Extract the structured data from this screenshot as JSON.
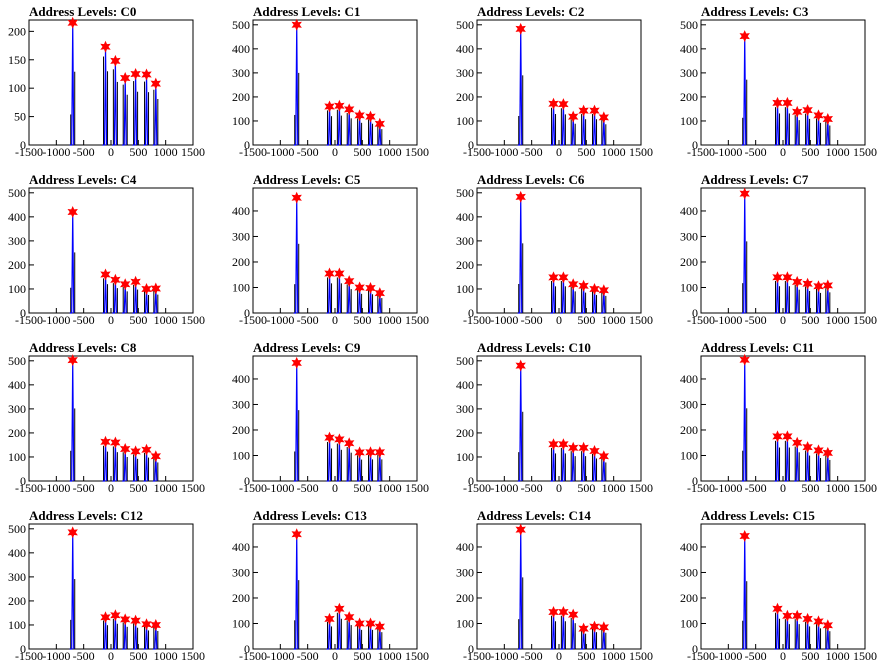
{
  "chart_data": [
    {
      "type": "histogram",
      "title": "Address Levels: C0",
      "xlim": [
        -1500,
        1500
      ],
      "ylim": [
        0,
        220
      ],
      "x_ticks": [
        "-1500",
        "-1000",
        "-500",
        "0",
        "500",
        "1000",
        "1500"
      ],
      "y_ticks": [
        "0",
        "50",
        "100",
        "150",
        "200"
      ],
      "peaks": [
        {
          "x": -700,
          "y": 215
        },
        {
          "x": -100,
          "y": 173
        },
        {
          "x": 80,
          "y": 148
        },
        {
          "x": 260,
          "y": 118
        },
        {
          "x": 450,
          "y": 125
        },
        {
          "x": 650,
          "y": 124
        },
        {
          "x": 820,
          "y": 108
        }
      ]
    },
    {
      "type": "histogram",
      "title": "Address Levels: C1",
      "xlim": [
        -1500,
        1500
      ],
      "ylim": [
        0,
        520
      ],
      "x_ticks": [
        "-1500",
        "-1000",
        "-500",
        "0",
        "500",
        "1000",
        "1500"
      ],
      "y_ticks": [
        "0",
        "100",
        "200",
        "300",
        "400",
        "500"
      ],
      "peaks": [
        {
          "x": -700,
          "y": 500
        },
        {
          "x": -100,
          "y": 160
        },
        {
          "x": 80,
          "y": 163
        },
        {
          "x": 260,
          "y": 148
        },
        {
          "x": 450,
          "y": 123
        },
        {
          "x": 650,
          "y": 118
        },
        {
          "x": 820,
          "y": 88
        }
      ]
    },
    {
      "type": "histogram",
      "title": "Address Levels: C2",
      "xlim": [
        -1500,
        1500
      ],
      "ylim": [
        0,
        520
      ],
      "x_ticks": [
        "-1500",
        "-1000",
        "-500",
        "0",
        "500",
        "1000",
        "1500"
      ],
      "y_ticks": [
        "0",
        "100",
        "200",
        "300",
        "400",
        "500"
      ],
      "peaks": [
        {
          "x": -700,
          "y": 483
        },
        {
          "x": -100,
          "y": 172
        },
        {
          "x": 80,
          "y": 170
        },
        {
          "x": 260,
          "y": 118
        },
        {
          "x": 450,
          "y": 143
        },
        {
          "x": 650,
          "y": 143
        },
        {
          "x": 820,
          "y": 115
        }
      ]
    },
    {
      "type": "histogram",
      "title": "Address Levels: C3",
      "xlim": [
        -1500,
        1500
      ],
      "ylim": [
        0,
        520
      ],
      "x_ticks": [
        "-1500",
        "-1000",
        "-500",
        "0",
        "500",
        "1000",
        "1500"
      ],
      "y_ticks": [
        "0",
        "100",
        "200",
        "300",
        "400",
        "500"
      ],
      "peaks": [
        {
          "x": -700,
          "y": 453
        },
        {
          "x": -100,
          "y": 175
        },
        {
          "x": 80,
          "y": 175
        },
        {
          "x": 260,
          "y": 138
        },
        {
          "x": 450,
          "y": 145
        },
        {
          "x": 650,
          "y": 123
        },
        {
          "x": 820,
          "y": 108
        }
      ]
    },
    {
      "type": "histogram",
      "title": "Address Levels: C4",
      "xlim": [
        -1500,
        1500
      ],
      "ylim": [
        0,
        520
      ],
      "x_ticks": [
        "-1500",
        "-1000",
        "-500",
        "0",
        "500",
        "1000",
        "1500"
      ],
      "y_ticks": [
        "0",
        "100",
        "200",
        "300",
        "400",
        "500"
      ],
      "peaks": [
        {
          "x": -700,
          "y": 420
        },
        {
          "x": -100,
          "y": 160
        },
        {
          "x": 80,
          "y": 138
        },
        {
          "x": 260,
          "y": 120
        },
        {
          "x": 450,
          "y": 130
        },
        {
          "x": 650,
          "y": 100
        },
        {
          "x": 820,
          "y": 102
        }
      ]
    },
    {
      "type": "histogram",
      "title": "Address Levels: C5",
      "xlim": [
        -1500,
        1500
      ],
      "ylim": [
        0,
        490
      ],
      "x_ticks": [
        "-1500",
        "-1000",
        "-500",
        "0",
        "500",
        "1000",
        "1500"
      ],
      "y_ticks": [
        "0",
        "100",
        "200",
        "300",
        "400"
      ],
      "peaks": [
        {
          "x": -700,
          "y": 452
        },
        {
          "x": -100,
          "y": 155
        },
        {
          "x": 80,
          "y": 155
        },
        {
          "x": 260,
          "y": 125
        },
        {
          "x": 450,
          "y": 100
        },
        {
          "x": 650,
          "y": 98
        },
        {
          "x": 820,
          "y": 78
        }
      ]
    },
    {
      "type": "histogram",
      "title": "Address Levels: C6",
      "xlim": [
        -1500,
        1500
      ],
      "ylim": [
        0,
        520
      ],
      "x_ticks": [
        "-1500",
        "-1000",
        "-500",
        "0",
        "500",
        "1000",
        "1500"
      ],
      "y_ticks": [
        "0",
        "100",
        "200",
        "300",
        "400",
        "500"
      ],
      "peaks": [
        {
          "x": -700,
          "y": 483
        },
        {
          "x": -100,
          "y": 148
        },
        {
          "x": 80,
          "y": 148
        },
        {
          "x": 260,
          "y": 120
        },
        {
          "x": 450,
          "y": 113
        },
        {
          "x": 650,
          "y": 100
        },
        {
          "x": 820,
          "y": 95
        }
      ]
    },
    {
      "type": "histogram",
      "title": "Address Levels: C7",
      "xlim": [
        -1500,
        1500
      ],
      "ylim": [
        0,
        490
      ],
      "x_ticks": [
        "-1500",
        "-1000",
        "-500",
        "0",
        "500",
        "1000",
        "1500"
      ],
      "y_ticks": [
        "0",
        "100",
        "200",
        "300",
        "400"
      ],
      "peaks": [
        {
          "x": -700,
          "y": 468
        },
        {
          "x": -100,
          "y": 140
        },
        {
          "x": 80,
          "y": 140
        },
        {
          "x": 260,
          "y": 122
        },
        {
          "x": 450,
          "y": 115
        },
        {
          "x": 650,
          "y": 105
        },
        {
          "x": 820,
          "y": 108
        }
      ]
    },
    {
      "type": "histogram",
      "title": "Address Levels: C8",
      "xlim": [
        -1500,
        1500
      ],
      "ylim": [
        0,
        520
      ],
      "x_ticks": [
        "-1500",
        "-1000",
        "-500",
        "0",
        "500",
        "1000",
        "1500"
      ],
      "y_ticks": [
        "0",
        "100",
        "200",
        "300",
        "400",
        "500"
      ],
      "peaks": [
        {
          "x": -700,
          "y": 503
        },
        {
          "x": -100,
          "y": 163
        },
        {
          "x": 80,
          "y": 160
        },
        {
          "x": 260,
          "y": 133
        },
        {
          "x": 450,
          "y": 123
        },
        {
          "x": 650,
          "y": 130
        },
        {
          "x": 820,
          "y": 103
        }
      ]
    },
    {
      "type": "histogram",
      "title": "Address Levels: C9",
      "xlim": [
        -1500,
        1500
      ],
      "ylim": [
        0,
        490
      ],
      "x_ticks": [
        "-1500",
        "-1000",
        "-500",
        "0",
        "500",
        "1000",
        "1500"
      ],
      "y_ticks": [
        "0",
        "100",
        "200",
        "300",
        "400"
      ],
      "peaks": [
        {
          "x": -700,
          "y": 463
        },
        {
          "x": -100,
          "y": 170
        },
        {
          "x": 80,
          "y": 163
        },
        {
          "x": 260,
          "y": 148
        },
        {
          "x": 450,
          "y": 112
        },
        {
          "x": 650,
          "y": 113
        },
        {
          "x": 820,
          "y": 113
        }
      ]
    },
    {
      "type": "histogram",
      "title": "Address Levels: C10",
      "xlim": [
        -1500,
        1500
      ],
      "ylim": [
        0,
        520
      ],
      "x_ticks": [
        "-1500",
        "-1000",
        "-500",
        "0",
        "500",
        "1000",
        "1500"
      ],
      "y_ticks": [
        "0",
        "100",
        "200",
        "300",
        "400",
        "500"
      ],
      "peaks": [
        {
          "x": -700,
          "y": 480
        },
        {
          "x": -100,
          "y": 153
        },
        {
          "x": 80,
          "y": 153
        },
        {
          "x": 260,
          "y": 138
        },
        {
          "x": 450,
          "y": 138
        },
        {
          "x": 650,
          "y": 125
        },
        {
          "x": 820,
          "y": 103
        }
      ]
    },
    {
      "type": "histogram",
      "title": "Address Levels: C11",
      "xlim": [
        -1500,
        1500
      ],
      "ylim": [
        0,
        490
      ],
      "x_ticks": [
        "-1500",
        "-1000",
        "-500",
        "0",
        "500",
        "1000",
        "1500"
      ],
      "y_ticks": [
        "0",
        "100",
        "200",
        "300",
        "400"
      ],
      "peaks": [
        {
          "x": -700,
          "y": 475
        },
        {
          "x": -100,
          "y": 175
        },
        {
          "x": 80,
          "y": 175
        },
        {
          "x": 260,
          "y": 150
        },
        {
          "x": 450,
          "y": 133
        },
        {
          "x": 650,
          "y": 120
        },
        {
          "x": 820,
          "y": 110
        }
      ]
    },
    {
      "type": "histogram",
      "title": "Address Levels: C12",
      "xlim": [
        -1500,
        1500
      ],
      "ylim": [
        0,
        520
      ],
      "x_ticks": [
        "-1500",
        "-1000",
        "-500",
        "0",
        "500",
        "1000",
        "1500"
      ],
      "y_ticks": [
        "0",
        "100",
        "200",
        "300",
        "400",
        "500"
      ],
      "peaks": [
        {
          "x": -700,
          "y": 485
        },
        {
          "x": -100,
          "y": 132
        },
        {
          "x": 80,
          "y": 140
        },
        {
          "x": 260,
          "y": 123
        },
        {
          "x": 450,
          "y": 118
        },
        {
          "x": 650,
          "y": 103
        },
        {
          "x": 820,
          "y": 100
        }
      ]
    },
    {
      "type": "histogram",
      "title": "Address Levels: C13",
      "xlim": [
        -1500,
        1500
      ],
      "ylim": [
        0,
        490
      ],
      "x_ticks": [
        "-1500",
        "-1000",
        "-500",
        "0",
        "500",
        "1000",
        "1500"
      ],
      "y_ticks": [
        "0",
        "100",
        "200",
        "300",
        "400"
      ],
      "peaks": [
        {
          "x": -700,
          "y": 450
        },
        {
          "x": -100,
          "y": 118
        },
        {
          "x": 80,
          "y": 158
        },
        {
          "x": 260,
          "y": 125
        },
        {
          "x": 450,
          "y": 100
        },
        {
          "x": 650,
          "y": 100
        },
        {
          "x": 820,
          "y": 88
        }
      ]
    },
    {
      "type": "histogram",
      "title": "Address Levels: C14",
      "xlim": [
        -1500,
        1500
      ],
      "ylim": [
        0,
        490
      ],
      "x_ticks": [
        "-1500",
        "-1000",
        "-500",
        "0",
        "500",
        "1000",
        "1500"
      ],
      "y_ticks": [
        "0",
        "100",
        "200",
        "300",
        "400"
      ],
      "peaks": [
        {
          "x": -700,
          "y": 468
        },
        {
          "x": -100,
          "y": 145
        },
        {
          "x": 80,
          "y": 145
        },
        {
          "x": 260,
          "y": 135
        },
        {
          "x": 450,
          "y": 80
        },
        {
          "x": 650,
          "y": 88
        },
        {
          "x": 820,
          "y": 85
        }
      ]
    },
    {
      "type": "histogram",
      "title": "Address Levels: C15",
      "xlim": [
        -1500,
        1500
      ],
      "ylim": [
        0,
        490
      ],
      "x_ticks": [
        "-1500",
        "-1000",
        "-500",
        "0",
        "500",
        "1000",
        "1500"
      ],
      "y_ticks": [
        "0",
        "100",
        "200",
        "300",
        "400"
      ],
      "peaks": [
        {
          "x": -700,
          "y": 443
        },
        {
          "x": -100,
          "y": 158
        },
        {
          "x": 80,
          "y": 130
        },
        {
          "x": 260,
          "y": 130
        },
        {
          "x": 450,
          "y": 118
        },
        {
          "x": 650,
          "y": 108
        },
        {
          "x": 820,
          "y": 93
        }
      ]
    }
  ],
  "colors": {
    "histogram_line": "#0000ff",
    "histogram_spike": "#000000",
    "peak_marker": "#ff0000",
    "frame": "#000000",
    "background": "#ffffff"
  }
}
